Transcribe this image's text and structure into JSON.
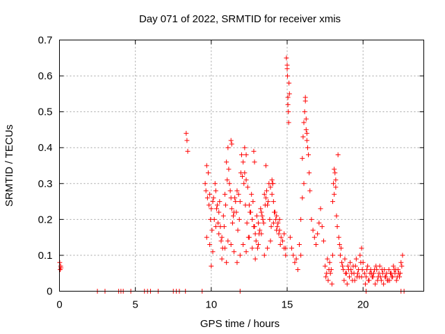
{
  "chart_data": {
    "type": "scatter",
    "title": "Day 071 of 2022, SRMTID for receiver xmis",
    "xlabel": "GPS time / hours",
    "ylabel": "SRMTID / TECUs",
    "xlim": [
      0,
      24
    ],
    "ylim": [
      0,
      0.7
    ],
    "xticks": [
      0,
      5,
      10,
      15,
      20
    ],
    "yticks": [
      0,
      0.1,
      0.2,
      0.3,
      0.4,
      0.5,
      0.6,
      0.7
    ],
    "grid": true,
    "marker": "+",
    "color": "#ff0000",
    "series": [
      {
        "name": "SRMTID",
        "x": [
          0.02,
          0.05,
          0.08,
          0.1,
          2.5,
          3.0,
          3.9,
          4.05,
          4.2,
          4.7,
          5.6,
          5.8,
          6.0,
          6.5,
          7.5,
          7.7,
          7.9,
          8.3,
          9.4,
          11.9,
          20.2,
          22.5,
          22.7,
          8.35,
          8.4,
          8.45,
          9.6,
          9.7,
          9.8,
          9.9,
          10.0,
          10.1,
          10.2,
          10.3,
          10.4,
          10.5,
          10.6,
          10.7,
          10.8,
          10.9,
          11.0,
          11.1,
          11.2,
          11.3,
          11.4,
          11.5,
          11.6,
          11.7,
          11.8,
          11.9,
          12.0,
          12.1,
          12.2,
          12.3,
          12.4,
          12.5,
          12.6,
          12.7,
          12.8,
          12.9,
          13.0,
          13.1,
          13.2,
          13.3,
          13.4,
          13.5,
          13.6,
          13.7,
          13.8,
          13.9,
          14.0,
          14.1,
          14.2,
          14.3,
          14.4,
          14.5,
          14.6,
          14.7,
          14.8,
          14.9,
          9.65,
          9.75,
          9.85,
          9.95,
          10.05,
          10.15,
          10.25,
          10.35,
          10.45,
          10.55,
          10.65,
          10.75,
          10.85,
          10.95,
          11.05,
          11.15,
          11.25,
          11.35,
          11.45,
          11.55,
          11.65,
          11.75,
          11.85,
          11.95,
          12.05,
          12.15,
          12.25,
          12.35,
          12.45,
          12.55,
          12.65,
          12.75,
          12.85,
          12.95,
          13.05,
          13.15,
          13.25,
          13.35,
          13.45,
          13.55,
          13.65,
          13.75,
          13.85,
          13.95,
          14.05,
          14.15,
          14.25,
          14.35,
          14.45,
          14.55,
          9.7,
          9.9,
          10.1,
          10.3,
          10.5,
          10.7,
          10.9,
          11.1,
          11.3,
          11.5,
          11.7,
          11.9,
          12.1,
          12.3,
          12.5,
          12.7,
          12.9,
          13.1,
          13.3,
          13.5,
          13.7,
          13.9,
          14.1,
          14.3,
          14.5,
          10.0,
          11.0,
          11.3,
          11.35,
          12.2,
          12.3,
          12.8,
          12.85,
          13.6,
          14.0,
          14.05,
          14.95,
          15.0,
          15.02,
          15.05,
          15.08,
          15.1,
          15.12,
          15.15,
          15.0,
          15.05,
          15.2,
          15.3,
          15.4,
          15.5,
          15.6,
          15.7,
          15.8,
          15.9,
          14.8,
          14.9,
          15.9,
          16.0,
          16.05,
          16.1,
          16.15,
          16.2,
          16.25,
          16.3,
          16.35,
          16.4,
          16.45,
          16.2,
          16.25,
          16.3,
          16.0,
          16.1,
          16.5,
          16.6,
          16.7,
          16.8,
          16.9,
          17.0,
          17.1,
          17.2,
          17.3,
          17.4,
          17.5,
          17.6,
          17.7,
          17.8,
          17.9,
          18.0,
          17.55,
          17.65,
          17.75,
          17.85,
          17.95,
          18.0,
          18.05,
          18.1,
          18.15,
          18.2,
          18.25,
          18.3,
          18.1,
          18.2,
          18.4,
          18.5,
          18.6,
          18.7,
          18.8,
          18.9,
          19.0,
          19.1,
          19.2,
          19.3,
          19.4,
          19.5,
          19.6,
          19.7,
          19.8,
          19.9,
          20.0,
          18.45,
          18.55,
          18.65,
          18.75,
          18.85,
          18.95,
          19.05,
          19.15,
          19.25,
          19.35,
          19.45,
          19.55,
          19.65,
          19.75,
          19.85,
          19.95,
          20.1,
          20.2,
          20.3,
          20.4,
          20.5,
          20.6,
          20.7,
          20.8,
          20.9,
          21.0,
          21.1,
          21.2,
          21.3,
          21.4,
          21.5,
          21.6,
          21.7,
          21.8,
          21.9,
          22.0,
          22.1,
          22.2,
          22.3,
          22.4,
          22.5,
          22.6,
          20.15,
          20.35,
          20.55,
          20.75,
          20.95,
          21.15,
          21.35,
          21.55,
          21.75,
          21.95,
          22.15,
          22.35,
          22.55,
          20.25,
          20.45,
          20.65,
          20.85,
          21.05,
          21.25,
          21.45,
          21.65,
          21.85,
          22.05,
          22.25,
          22.45,
          19.9,
          18.35
        ],
        "y": [
          0.08,
          0.06,
          0.07,
          0.065,
          0,
          0,
          0,
          0,
          0,
          0,
          0,
          0,
          0,
          0,
          0,
          0,
          0,
          0,
          0,
          0,
          0,
          0,
          0,
          0.44,
          0.42,
          0.39,
          0.3,
          0.35,
          0.33,
          0.27,
          0.23,
          0.25,
          0.2,
          0.28,
          0.24,
          0.22,
          0.18,
          0.15,
          0.21,
          0.27,
          0.36,
          0.4,
          0.3,
          0.26,
          0.19,
          0.22,
          0.25,
          0.28,
          0.27,
          0.25,
          0.38,
          0.36,
          0.33,
          0.31,
          0.29,
          0.24,
          0.22,
          0.2,
          0.18,
          0.16,
          0.21,
          0.19,
          0.17,
          0.22,
          0.2,
          0.27,
          0.26,
          0.24,
          0.3,
          0.29,
          0.27,
          0.25,
          0.22,
          0.21,
          0.19,
          0.17,
          0.15,
          0.14,
          0.12,
          0.1,
          0.28,
          0.26,
          0.24,
          0.2,
          0.17,
          0.26,
          0.3,
          0.23,
          0.19,
          0.25,
          0.14,
          0.12,
          0.18,
          0.24,
          0.31,
          0.34,
          0.28,
          0.23,
          0.21,
          0.26,
          0.22,
          0.17,
          0.2,
          0.33,
          0.32,
          0.3,
          0.24,
          0.19,
          0.15,
          0.22,
          0.27,
          0.25,
          0.18,
          0.14,
          0.12,
          0.16,
          0.23,
          0.21,
          0.19,
          0.24,
          0.28,
          0.25,
          0.2,
          0.18,
          0.3,
          0.22,
          0.2,
          0.18,
          0.16,
          0.13,
          0.15,
          0.13,
          0.11,
          0.18,
          0.16,
          0.09,
          0.12,
          0.14,
          0.13,
          0.11,
          0.08,
          0.1,
          0.13,
          0.11,
          0.15,
          0.12,
          0.09,
          0.13,
          0.16,
          0.1,
          0.12,
          0.14,
          0.19,
          0.17,
          0.2,
          0.07,
          0.08,
          0.42,
          0.41,
          0.4,
          0.38,
          0.39,
          0.36,
          0.35,
          0.31,
          0.3,
          0.65,
          0.62,
          0.6,
          0.54,
          0.5,
          0.47,
          0.58,
          0.55,
          0.63,
          0.52,
          0.15,
          0.12,
          0.1,
          0.08,
          0.09,
          0.06,
          0.13,
          0.1,
          0.16,
          0.12,
          0.2,
          0.37,
          0.43,
          0.47,
          0.5,
          0.53,
          0.48,
          0.44,
          0.4,
          0.38,
          0.33,
          0.54,
          0.45,
          0.42,
          0.26,
          0.3,
          0.28,
          0.2,
          0.17,
          0.15,
          0.13,
          0.16,
          0.19,
          0.23,
          0.18,
          0.14,
          0.07,
          0.05,
          0.03,
          0.08,
          0.06,
          0.1,
          0.04,
          0.09,
          0.06,
          0.05,
          0.02,
          0.25,
          0.3,
          0.34,
          0.33,
          0.29,
          0.21,
          0.18,
          0.27,
          0.31,
          0.15,
          0.1,
          0.08,
          0.06,
          0.09,
          0.05,
          0.07,
          0.04,
          0.06,
          0.03,
          0.05,
          0.07,
          0.04,
          0.06,
          0.1,
          0.12,
          0.08,
          0.13,
          0.12,
          0.07,
          0.03,
          0.05,
          0.02,
          0.06,
          0.08,
          0.05,
          0.07,
          0.03,
          0.09,
          0.05,
          0.04,
          0.08,
          0.06,
          0.05,
          0.04,
          0.07,
          0.03,
          0.06,
          0.04,
          0.05,
          0.02,
          0.06,
          0.04,
          0.07,
          0.03,
          0.05,
          0.06,
          0.04,
          0.03,
          0.06,
          0.05,
          0.04,
          0.07,
          0.05,
          0.03,
          0.06,
          0.04,
          0.08,
          0.1,
          0.02,
          0.03,
          0.05,
          0.06,
          0.03,
          0.04,
          0.02,
          0.05,
          0.03,
          0.04,
          0.06,
          0.05,
          0.07,
          0.06,
          0.05,
          0.04,
          0.07,
          0.05,
          0.06,
          0.04,
          0.03,
          0.05,
          0.06,
          0.04,
          0.05,
          0.04,
          0.38
        ]
      }
    ]
  }
}
